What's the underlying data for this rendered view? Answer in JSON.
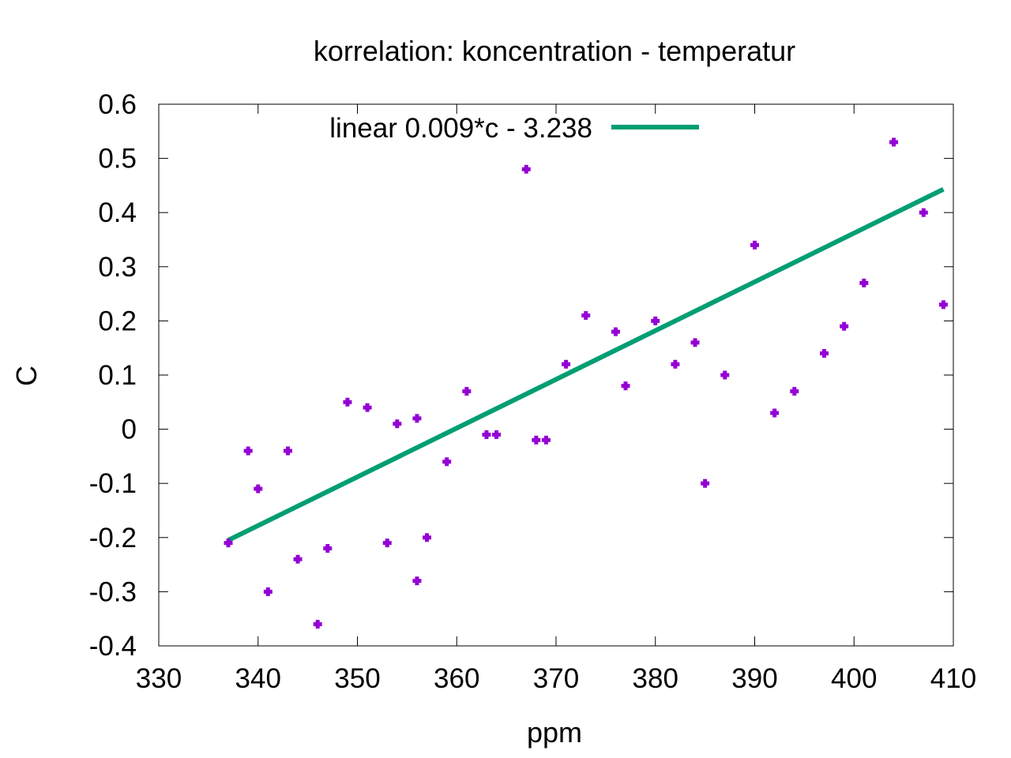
{
  "chart_data": {
    "type": "scatter",
    "title": "korrelation: koncentration - temperatur",
    "xlabel": "ppm",
    "ylabel": "C",
    "xlim": [
      330,
      410
    ],
    "ylim": [
      -0.4,
      0.6
    ],
    "xticks": [
      330,
      340,
      350,
      360,
      370,
      380,
      390,
      400,
      410
    ],
    "yticks": [
      -0.4,
      -0.3,
      -0.2,
      -0.1,
      0,
      0.1,
      0.2,
      0.3,
      0.4,
      0.5,
      0.6
    ],
    "ytick_labels": [
      "-0.4",
      "-0.3",
      "-0.2",
      "-0.1",
      "0",
      "0.1",
      "0.2",
      "0.3",
      "0.4",
      "0.5",
      "0.6"
    ],
    "grid": false,
    "legend": {
      "placement": "top-left",
      "entries": [
        {
          "label": "linear 0.009*c - 3.238",
          "color": "#009e73"
        }
      ]
    },
    "series": [
      {
        "kind": "points",
        "color": "#9400d3",
        "marker": "cross",
        "points": [
          [
            337,
            -0.21
          ],
          [
            339,
            -0.04
          ],
          [
            340,
            -0.11
          ],
          [
            341,
            -0.3
          ],
          [
            343,
            -0.04
          ],
          [
            344,
            -0.24
          ],
          [
            346,
            -0.36
          ],
          [
            347,
            -0.22
          ],
          [
            349,
            0.05
          ],
          [
            351,
            0.04
          ],
          [
            353,
            -0.21
          ],
          [
            354,
            0.01
          ],
          [
            356,
            0.02
          ],
          [
            356,
            -0.28
          ],
          [
            357,
            -0.2
          ],
          [
            359,
            -0.06
          ],
          [
            361,
            0.07
          ],
          [
            363,
            -0.01
          ],
          [
            364,
            -0.01
          ],
          [
            367,
            0.48
          ],
          [
            368,
            -0.02
          ],
          [
            369,
            -0.02
          ],
          [
            371,
            0.12
          ],
          [
            373,
            0.21
          ],
          [
            376,
            0.18
          ],
          [
            377,
            0.08
          ],
          [
            380,
            0.2
          ],
          [
            382,
            0.12
          ],
          [
            384,
            0.16
          ],
          [
            385,
            -0.1
          ],
          [
            387,
            0.1
          ],
          [
            390,
            0.34
          ],
          [
            392,
            0.03
          ],
          [
            394,
            0.07
          ],
          [
            397,
            0.14
          ],
          [
            399,
            0.19
          ],
          [
            401,
            0.27
          ],
          [
            404,
            0.53
          ],
          [
            407,
            0.4
          ],
          [
            409,
            0.23
          ]
        ]
      },
      {
        "kind": "line",
        "name": "linear 0.009*c - 3.238",
        "color": "#009e73",
        "points": [
          [
            337,
            -0.205
          ],
          [
            409,
            0.443
          ]
        ]
      }
    ]
  }
}
